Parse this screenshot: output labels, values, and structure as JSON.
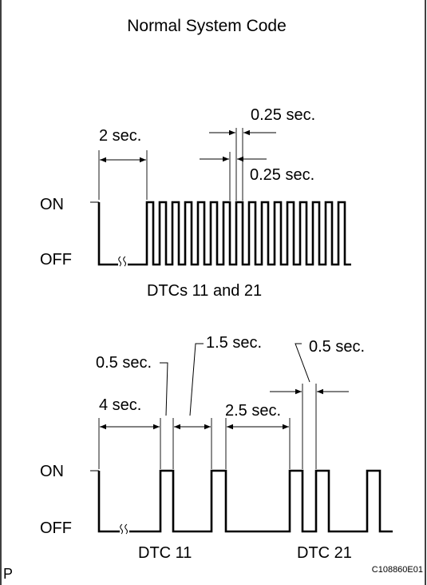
{
  "title": "Normal System Code",
  "top_chart": {
    "on_label": "ON",
    "off_label": "OFF",
    "interval_2s": "2 sec.",
    "pulse_width_top": "0.25 sec.",
    "pulse_width_bottom": "0.25 sec.",
    "caption": "DTCs 11 and 21"
  },
  "bottom_chart": {
    "on_label": "ON",
    "off_label": "OFF",
    "interval_4s": "4 sec.",
    "pulse_05_left": "0.5 sec.",
    "gap_15": "1.5 sec.",
    "gap_25": "2.5 sec.",
    "pulse_05_right": "0.5 sec.",
    "code1": "DTC 11",
    "code2": "DTC 21"
  },
  "corner_letter": "P",
  "figure_id": "C108860E01"
}
